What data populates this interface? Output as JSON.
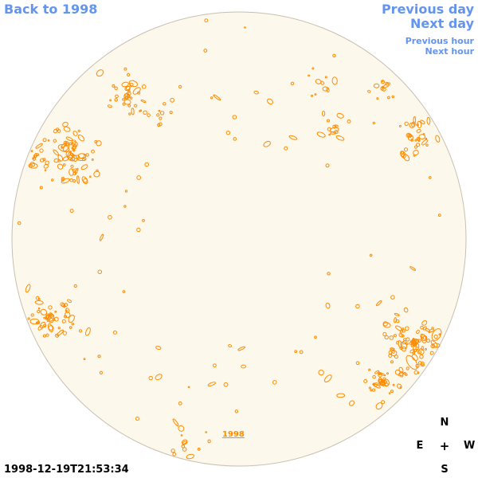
{
  "nav": {
    "back_label": "Back to 1998",
    "previous_day": "Previous day",
    "next_day": "Next day",
    "previous_hour": "Previous hour",
    "next_hour": "Next hour"
  },
  "timestamp": "1998-12-19T21:53:34",
  "disk": {
    "fill_color": "#fdf8ec",
    "limb_color": "#c8c0b0",
    "contour_color": "#ff8c00",
    "link_label": "1998"
  },
  "compass": {
    "north": "N",
    "south": "S",
    "east": "E",
    "west": "W",
    "center": "+"
  },
  "colors": {
    "link": "#6495ed",
    "contour": "#ff8c00"
  }
}
